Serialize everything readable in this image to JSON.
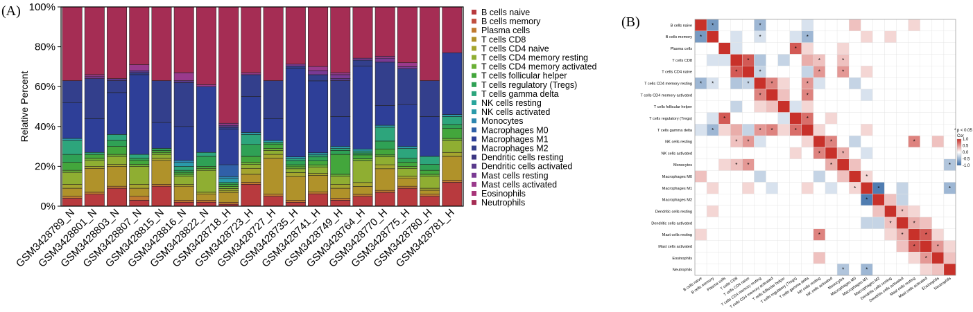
{
  "panels": {
    "a_label": "(A)",
    "b_label": "(B)"
  },
  "chart_data": [
    {
      "type": "bar",
      "stacked": true,
      "ylabel": "Relative Percent",
      "xlabel": "",
      "ylim": [
        0,
        100
      ],
      "y_ticks": [
        "0%",
        "20%",
        "40%",
        "60%",
        "80%",
        "100%"
      ],
      "legend_position": "right",
      "categories": [
        "GSM3428789_N",
        "GSM3428801_N",
        "GSM3428803_N",
        "GSM3428807_N",
        "GSM3428815_N",
        "GSM3428816_N",
        "GSM3428822_N",
        "GSM3428718_H",
        "GSM3428723_H",
        "GSM3428727_H",
        "GSM3428735_H",
        "GSM3428741_H",
        "GSM3428749_H",
        "GSM3428764_H",
        "GSM3428770_H",
        "GSM3428775_H",
        "GSM3428780_H",
        "GSM3428781_H"
      ],
      "series": [
        {
          "name": "B cells naive",
          "color": "#b83a3e",
          "values": [
            4,
            6,
            9,
            3,
            10,
            2,
            2,
            1,
            11,
            5,
            2,
            6,
            3,
            5,
            7,
            9,
            5,
            12
          ]
        },
        {
          "name": "B cells memory",
          "color": "#c05040",
          "values": [
            0,
            0,
            0,
            0,
            0,
            0,
            0,
            0,
            0,
            0,
            0,
            0,
            0,
            0,
            0,
            0,
            0,
            0
          ]
        },
        {
          "name": "Plasma cells",
          "color": "#c07a30",
          "values": [
            1,
            1,
            1,
            2,
            1,
            1,
            1,
            1,
            1,
            1,
            1,
            1,
            1,
            1,
            1,
            1,
            1,
            1
          ]
        },
        {
          "name": "T cells CD8",
          "color": "#b0922a",
          "values": [
            4,
            12,
            10,
            4,
            12,
            7,
            3,
            5,
            4,
            18,
            12,
            8,
            5,
            4,
            11,
            4,
            2,
            12
          ]
        },
        {
          "name": "T cells CD4 naive",
          "color": "#a5a52e",
          "values": [
            2,
            1,
            1,
            2,
            1,
            1,
            1,
            1,
            3,
            2,
            2,
            1,
            2,
            2,
            2,
            1,
            1,
            2
          ]
        },
        {
          "name": "T cells CD4 memory resting",
          "color": "#8fae32",
          "values": [
            6,
            3,
            4,
            9,
            2,
            4,
            11,
            1,
            2,
            2,
            2,
            3,
            4,
            11,
            4,
            4,
            6,
            6
          ]
        },
        {
          "name": "T cells CD4 memory activated",
          "color": "#6ab036",
          "values": [
            1,
            1,
            1,
            1,
            1,
            1,
            1,
            1,
            1,
            1,
            1,
            1,
            1,
            1,
            1,
            1,
            1,
            1
          ]
        },
        {
          "name": "T cells follicular helper",
          "color": "#43a63c",
          "values": [
            4,
            2,
            4,
            2,
            1,
            1,
            1,
            1,
            3,
            2,
            1,
            2,
            10,
            2,
            3,
            2,
            2,
            5
          ]
        },
        {
          "name": "T cells regulatory (Tregs)",
          "color": "#2fa155",
          "values": [
            4,
            0,
            3,
            1,
            1,
            1,
            5,
            1,
            6,
            1,
            2,
            2,
            2,
            1,
            4,
            2,
            3,
            2
          ]
        },
        {
          "name": "T cells gamma delta",
          "color": "#2da57c",
          "values": [
            7,
            1,
            3,
            2,
            0,
            2,
            2,
            0,
            5,
            0,
            1,
            1,
            1,
            1,
            7,
            5,
            4,
            4
          ]
        },
        {
          "name": "NK cells resting",
          "color": "#2aa59c",
          "values": [
            0,
            0,
            0,
            0,
            0,
            0,
            0,
            0,
            0,
            0,
            0,
            0,
            0,
            0,
            0,
            0,
            0,
            0
          ]
        },
        {
          "name": "NK cells activated",
          "color": "#2a9aaa",
          "values": [
            1,
            0,
            0,
            0,
            0,
            2,
            0,
            2,
            1,
            1,
            1,
            1,
            1,
            1,
            1,
            1,
            0,
            1
          ]
        },
        {
          "name": "Monocytes",
          "color": "#2d86b0",
          "values": [
            0,
            0,
            0,
            0,
            0,
            1,
            0,
            1,
            0,
            0,
            0,
            0,
            0,
            0,
            0,
            0,
            0,
            0
          ]
        },
        {
          "name": "Macrophages M0",
          "color": "#3060a8",
          "values": [
            0,
            0,
            0,
            0,
            0,
            0,
            0,
            6,
            0,
            0,
            0,
            0,
            0,
            0,
            0,
            0,
            0,
            0
          ]
        },
        {
          "name": "Macrophages M1",
          "color": "#2e3f98",
          "values": [
            18,
            17,
            21,
            40,
            13,
            17,
            33,
            18,
            18,
            11,
            45,
            35,
            15,
            42,
            10,
            21,
            20,
            31
          ]
        },
        {
          "name": "Macrophages M2",
          "color": "#333f8c",
          "values": [
            11,
            20,
            6,
            1,
            21,
            22,
            0,
            1,
            11,
            19,
            1,
            3,
            18,
            3,
            22,
            18,
            18,
            0
          ]
        },
        {
          "name": "Dendritic cells resting",
          "color": "#3b3682",
          "values": [
            0,
            0,
            0,
            0,
            0,
            0,
            0,
            0,
            0,
            0,
            0,
            0,
            0,
            0,
            0,
            0,
            0,
            0
          ]
        },
        {
          "name": "Dendritic cells activated",
          "color": "#5a3a8c",
          "values": [
            0,
            0,
            1,
            1,
            0,
            1,
            0,
            1,
            0,
            0,
            0,
            0,
            1,
            0,
            0,
            0,
            0,
            0
          ]
        },
        {
          "name": "Mast cells resting",
          "color": "#7a3a94",
          "values": [
            0,
            1,
            0,
            0,
            0,
            0,
            0,
            0,
            0,
            0,
            1,
            2,
            2,
            1,
            2,
            1,
            0,
            0
          ]
        },
        {
          "name": "Mast cells activated",
          "color": "#9a3a8c",
          "values": [
            0,
            1,
            0,
            3,
            0,
            4,
            1,
            1,
            1,
            0,
            0,
            2,
            1,
            0,
            1,
            2,
            0,
            0
          ]
        },
        {
          "name": "Eosinophils",
          "color": "#a8367a",
          "values": [
            0,
            0,
            0,
            0,
            0,
            0,
            0,
            0,
            0,
            0,
            0,
            0,
            0,
            0,
            0,
            0,
            0,
            0
          ]
        },
        {
          "name": "Neutrophils",
          "color": "#a52d54",
          "values": [
            37,
            34,
            36,
            29,
            37,
            33,
            39,
            59,
            33,
            37,
            29,
            29,
            33,
            26,
            25,
            28,
            37,
            23
          ]
        }
      ]
    },
    {
      "type": "heatmap",
      "labels": [
        "B cells naive",
        "B cells memory",
        "Plasma cells",
        "T cells CD8",
        "T cells CD4 naive",
        "T cells CD4 memory resting",
        "T cells CD4 memory activated",
        "T cells follicular helper",
        "T cells regulatory (Tregs)",
        "T cells gamma delta",
        "NK cells resting",
        "NK cells activated",
        "Monocytes",
        "Macrophages M0",
        "Macrophages M1",
        "Macrophages M2",
        "Dendritic cells resting",
        "Dendritic cells activated",
        "Mast cells resting",
        "Mast cells activated",
        "Eosinophils",
        "Neutrophils"
      ],
      "legend_title": "Cor",
      "significance_note": "* p < 0.05",
      "color_scale": {
        "min": -1.0,
        "max": 1.0,
        "low": "#3d6ea8",
        "mid": "#ffffff",
        "high": "#c8312a"
      },
      "color_ticks": [
        "1.0",
        "0.5",
        "0.0",
        "-0.5",
        "-1.0"
      ],
      "sparse_correlations": [
        [
          0,
          1,
          -0.7
        ],
        [
          0,
          5,
          -0.5
        ],
        [
          0,
          9,
          -0.2
        ],
        [
          0,
          13,
          0.3
        ],
        [
          0,
          18,
          0.2
        ],
        [
          1,
          3,
          -0.2
        ],
        [
          1,
          5,
          -0.2
        ],
        [
          1,
          8,
          -0.2
        ],
        [
          1,
          9,
          -0.5
        ],
        [
          1,
          14,
          0.2
        ],
        [
          1,
          16,
          0.2
        ],
        [
          2,
          3,
          -0.2
        ],
        [
          2,
          8,
          0.8
        ],
        [
          2,
          9,
          0.2
        ],
        [
          2,
          12,
          0.2
        ],
        [
          3,
          4,
          0.8
        ],
        [
          3,
          5,
          -0.4
        ],
        [
          3,
          7,
          -0.3
        ],
        [
          3,
          9,
          0.4
        ],
        [
          3,
          10,
          0.3
        ],
        [
          3,
          12,
          0.3
        ],
        [
          4,
          5,
          -0.3
        ],
        [
          4,
          9,
          -0.3
        ],
        [
          4,
          10,
          0.5
        ],
        [
          4,
          12,
          0.5
        ],
        [
          4,
          14,
          0.2
        ],
        [
          5,
          6,
          0.6
        ],
        [
          5,
          7,
          0.2
        ],
        [
          5,
          9,
          0.5
        ],
        [
          5,
          10,
          -0.2
        ],
        [
          5,
          13,
          -0.3
        ],
        [
          6,
          7,
          0.3
        ],
        [
          6,
          9,
          0.6
        ],
        [
          6,
          14,
          -0.2
        ],
        [
          7,
          8,
          -0.2
        ],
        [
          7,
          9,
          0.2
        ],
        [
          8,
          9,
          0.7
        ],
        [
          8,
          11,
          0.2
        ],
        [
          9,
          10,
          0.2
        ],
        [
          9,
          14,
          0.2
        ],
        [
          10,
          11,
          0.6
        ],
        [
          10,
          13,
          -0.3
        ],
        [
          10,
          18,
          0.6
        ],
        [
          10,
          20,
          0.3
        ],
        [
          11,
          12,
          0.4
        ],
        [
          11,
          14,
          -0.2
        ],
        [
          12,
          13,
          0.3
        ],
        [
          12,
          21,
          -0.4
        ],
        [
          13,
          14,
          0.2
        ],
        [
          14,
          15,
          -0.9
        ],
        [
          14,
          17,
          -0.3
        ],
        [
          14,
          21,
          -0.5
        ],
        [
          15,
          16,
          0.3
        ],
        [
          15,
          17,
          -0.3
        ],
        [
          16,
          17,
          0.3
        ],
        [
          16,
          18,
          0.2
        ],
        [
          17,
          18,
          0.4
        ],
        [
          17,
          19,
          0.3
        ],
        [
          18,
          19,
          0.8
        ],
        [
          18,
          20,
          0.2
        ],
        [
          19,
          20,
          0.5
        ],
        [
          19,
          21,
          0.2
        ],
        [
          20,
          21,
          0.3
        ]
      ],
      "significant_pairs": [
        [
          0,
          1
        ],
        [
          0,
          5
        ],
        [
          1,
          9
        ],
        [
          1,
          5
        ],
        [
          2,
          8
        ],
        [
          3,
          4
        ],
        [
          4,
          5
        ],
        [
          4,
          10
        ],
        [
          4,
          12
        ],
        [
          5,
          6
        ],
        [
          5,
          9
        ],
        [
          6,
          9
        ],
        [
          8,
          9
        ],
        [
          3,
          10
        ],
        [
          3,
          12
        ],
        [
          10,
          11
        ],
        [
          10,
          18
        ],
        [
          11,
          12
        ],
        [
          12,
          21
        ],
        [
          13,
          14
        ],
        [
          14,
          15
        ],
        [
          14,
          21
        ],
        [
          16,
          17
        ],
        [
          17,
          18
        ],
        [
          18,
          19
        ],
        [
          19,
          20
        ]
      ]
    }
  ]
}
